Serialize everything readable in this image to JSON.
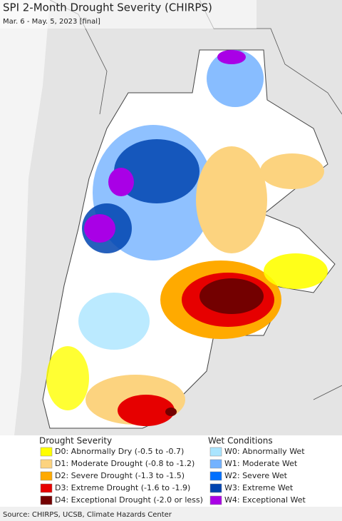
{
  "header": {
    "title": "SPI 2-Month Drought Severity (CHIRPS)",
    "subtitle": "Mar. 6 - May. 5, 2023 [final]"
  },
  "legend": {
    "drought": {
      "title": "Drought Severity",
      "items": [
        {
          "label": "D0: Abnormally Dry (-0.5 to -0.7)",
          "color": "#ffff00"
        },
        {
          "label": "D1: Moderate Drought (-0.8 to -1.2)",
          "color": "#fcd37f"
        },
        {
          "label": "D2: Severe Drought (-1.3 to -1.5)",
          "color": "#ffaa00"
        },
        {
          "label": "D3: Extreme Drought (-1.6 to -1.9)",
          "color": "#e60000"
        },
        {
          "label": "D4: Exceptional Drought (-2.0 or less)",
          "color": "#730000"
        }
      ]
    },
    "wet": {
      "title": "Wet Conditions",
      "items": [
        {
          "label": "W0: Abnormally Wet",
          "color": "#aae5ff"
        },
        {
          "label": "W1: Moderate Wet",
          "color": "#73b2ff"
        },
        {
          "label": "W2: Severe Wet",
          "color": "#0070ff"
        },
        {
          "label": "W3: Extreme Wet",
          "color": "#0044b0"
        },
        {
          "label": "W4: Exceptional Wet",
          "color": "#a900e6"
        }
      ]
    }
  },
  "footer": {
    "source": "Source: CHIRPS, UCSB, Climate Hazards Center"
  }
}
